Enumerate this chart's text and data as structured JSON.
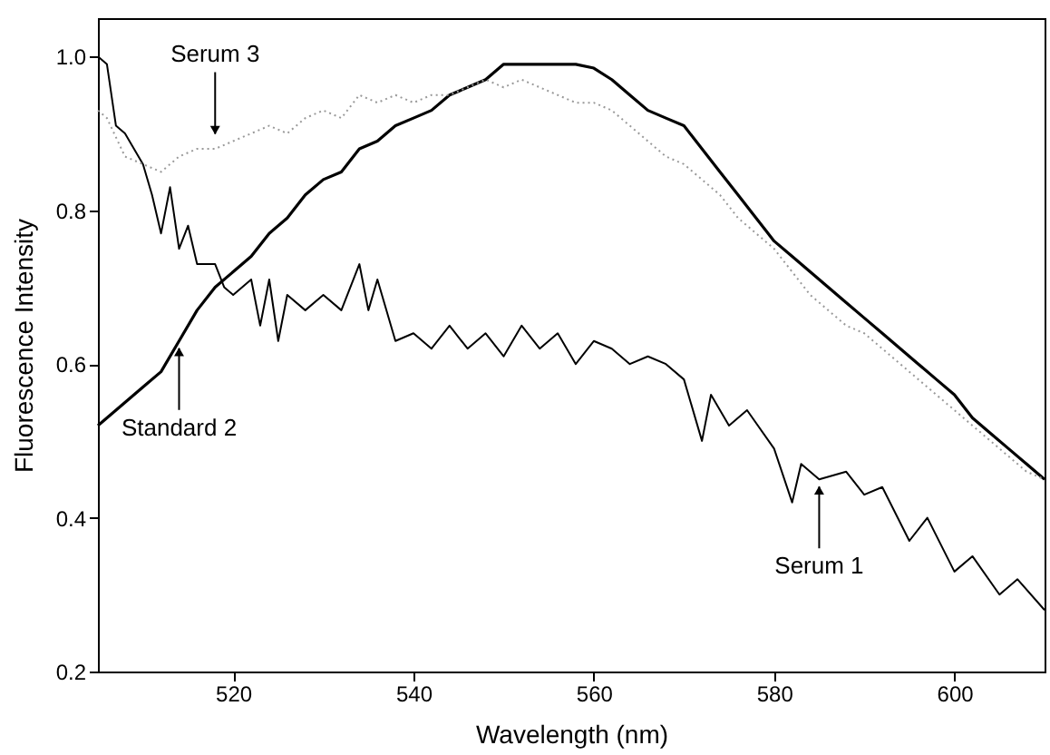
{
  "chart_data": {
    "type": "line",
    "xlabel": "Wavelength (nm)",
    "ylabel": "Fluorescence Intensity",
    "xlim": [
      505,
      610
    ],
    "xticks": [
      520,
      540,
      560,
      580,
      600
    ],
    "ylim": [
      0.2,
      1.05
    ],
    "yticks": [
      {
        "value": 0.2,
        "label": "0.2"
      },
      {
        "value": 0.4,
        "label": "0.4"
      },
      {
        "value": 0.6,
        "label": "0.6"
      },
      {
        "value": 0.8,
        "label": "0.8"
      },
      {
        "value": 1,
        "label": "1.0"
      }
    ],
    "grid": false,
    "series": [
      {
        "color": "#000000",
        "line_style": "solid",
        "x": [
          505,
          508,
          510,
          512,
          514,
          516,
          518,
          520,
          522,
          524,
          526,
          528,
          530,
          532,
          534,
          536,
          538,
          540,
          542,
          544,
          546,
          548,
          550,
          552,
          554,
          556,
          558,
          560,
          562,
          564,
          566,
          568,
          570,
          572,
          574,
          576,
          578,
          580,
          582,
          584,
          586,
          588,
          590,
          592,
          594,
          596,
          598,
          600,
          602,
          604,
          606,
          608,
          610
        ],
        "values": [
          0.52,
          0.55,
          0.57,
          0.59,
          0.63,
          0.67,
          0.7,
          0.72,
          0.74,
          0.77,
          0.79,
          0.82,
          0.84,
          0.85,
          0.88,
          0.89,
          0.91,
          0.92,
          0.93,
          0.95,
          0.96,
          0.97,
          0.99,
          0.99,
          0.99,
          0.99,
          0.99,
          0.985,
          0.97,
          0.95,
          0.93,
          0.92,
          0.91,
          0.88,
          0.85,
          0.82,
          0.79,
          0.76,
          0.74,
          0.72,
          0.7,
          0.68,
          0.66,
          0.64,
          0.62,
          0.6,
          0.58,
          0.56,
          0.53,
          0.51,
          0.49,
          0.47,
          0.45
        ]
      },
      {
        "color": "#000000",
        "line_style": "solid",
        "x": [
          505,
          506,
          507,
          508,
          510,
          511,
          512,
          513,
          514,
          515,
          516,
          518,
          519,
          520,
          522,
          523,
          524,
          525,
          526,
          528,
          530,
          532,
          534,
          535,
          536,
          538,
          540,
          542,
          544,
          546,
          548,
          550,
          552,
          554,
          556,
          558,
          560,
          562,
          564,
          566,
          568,
          570,
          572,
          573,
          575,
          577,
          580,
          582,
          583,
          585,
          588,
          590,
          592,
          595,
          597,
          600,
          602,
          605,
          607,
          610
        ],
        "values": [
          1.0,
          0.99,
          0.91,
          0.9,
          0.86,
          0.82,
          0.77,
          0.83,
          0.75,
          0.78,
          0.73,
          0.73,
          0.7,
          0.69,
          0.71,
          0.65,
          0.71,
          0.63,
          0.69,
          0.67,
          0.69,
          0.67,
          0.73,
          0.67,
          0.71,
          0.63,
          0.64,
          0.62,
          0.65,
          0.62,
          0.64,
          0.61,
          0.65,
          0.62,
          0.64,
          0.6,
          0.63,
          0.62,
          0.6,
          0.61,
          0.6,
          0.58,
          0.5,
          0.56,
          0.52,
          0.54,
          0.49,
          0.42,
          0.47,
          0.45,
          0.46,
          0.43,
          0.44,
          0.37,
          0.4,
          0.33,
          0.35,
          0.3,
          0.32,
          0.28
        ]
      },
      {
        "color": "#999999",
        "line_style": "dotted",
        "x": [
          505,
          506,
          508,
          510,
          512,
          514,
          516,
          518,
          520,
          522,
          524,
          526,
          528,
          530,
          532,
          534,
          536,
          538,
          540,
          542,
          544,
          546,
          548,
          550,
          552,
          554,
          556,
          558,
          560,
          562,
          564,
          566,
          568,
          570,
          572,
          574,
          576,
          578,
          580,
          582,
          584,
          586,
          588,
          590,
          592,
          594,
          596,
          598,
          600,
          602,
          604,
          606,
          608,
          610
        ],
        "values": [
          0.93,
          0.92,
          0.87,
          0.86,
          0.85,
          0.87,
          0.88,
          0.88,
          0.89,
          0.9,
          0.91,
          0.9,
          0.92,
          0.93,
          0.92,
          0.95,
          0.94,
          0.95,
          0.94,
          0.95,
          0.95,
          0.96,
          0.97,
          0.96,
          0.97,
          0.96,
          0.95,
          0.94,
          0.94,
          0.93,
          0.91,
          0.89,
          0.87,
          0.86,
          0.84,
          0.82,
          0.79,
          0.77,
          0.75,
          0.72,
          0.69,
          0.67,
          0.65,
          0.64,
          0.62,
          0.6,
          0.58,
          0.56,
          0.54,
          0.52,
          0.5,
          0.48,
          0.46,
          0.45
        ]
      }
    ],
    "annotations": [
      {
        "text": "Serum 3",
        "x": 518,
        "y": 0.89
      },
      {
        "text": "Standard 2",
        "x": 514,
        "y": 0.63
      },
      {
        "text": "Serum 1",
        "x": 585,
        "y": 0.45
      }
    ]
  }
}
